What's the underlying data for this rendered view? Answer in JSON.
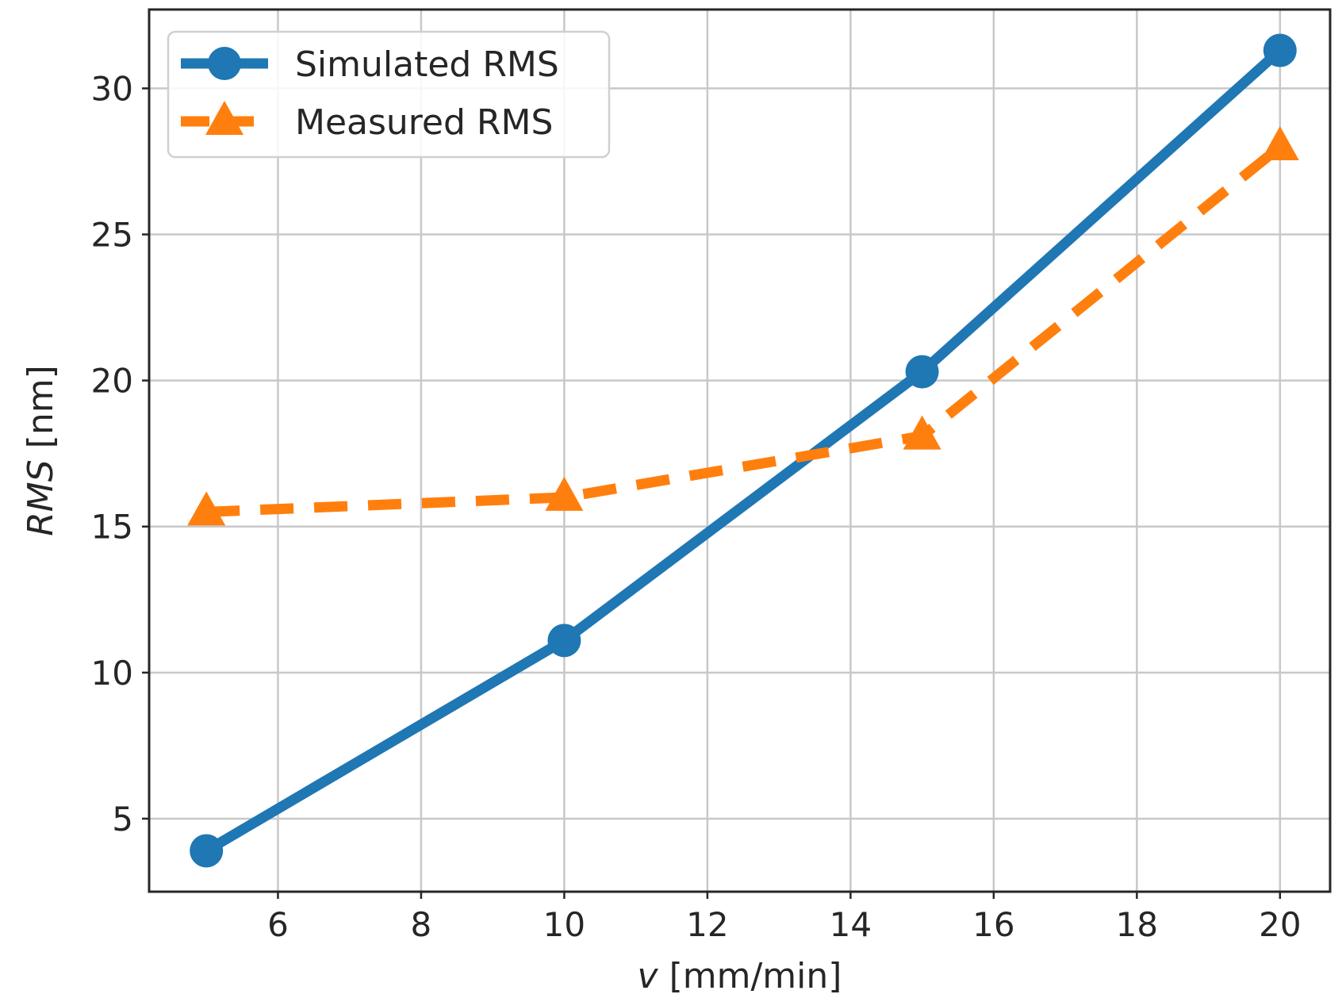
{
  "chart_data": {
    "type": "line",
    "title": "",
    "xlabel_prefix": "v",
    "xlabel_suffix": " [mm/min]",
    "ylabel_prefix": "RMS",
    "ylabel_suffix": " [nm]",
    "xlim": [
      4.2,
      20.7
    ],
    "ylim": [
      2.5,
      32.7
    ],
    "xticks": [
      6,
      8,
      10,
      12,
      14,
      16,
      18,
      20
    ],
    "yticks": [
      5,
      10,
      15,
      20,
      25,
      30
    ],
    "grid": true,
    "legend_position": "top-left",
    "series": [
      {
        "name": "Simulated RMS",
        "x": [
          5,
          10,
          15,
          20
        ],
        "values": [
          3.9,
          11.1,
          20.3,
          31.3
        ],
        "color": "#1f77b4",
        "marker": "circle",
        "linestyle": "solid"
      },
      {
        "name": "Measured RMS",
        "x": [
          5,
          10,
          15,
          20
        ],
        "values": [
          15.5,
          16.0,
          18.1,
          28.0
        ],
        "color": "#ff7f0e",
        "marker": "triangle",
        "linestyle": "dashed"
      }
    ]
  }
}
